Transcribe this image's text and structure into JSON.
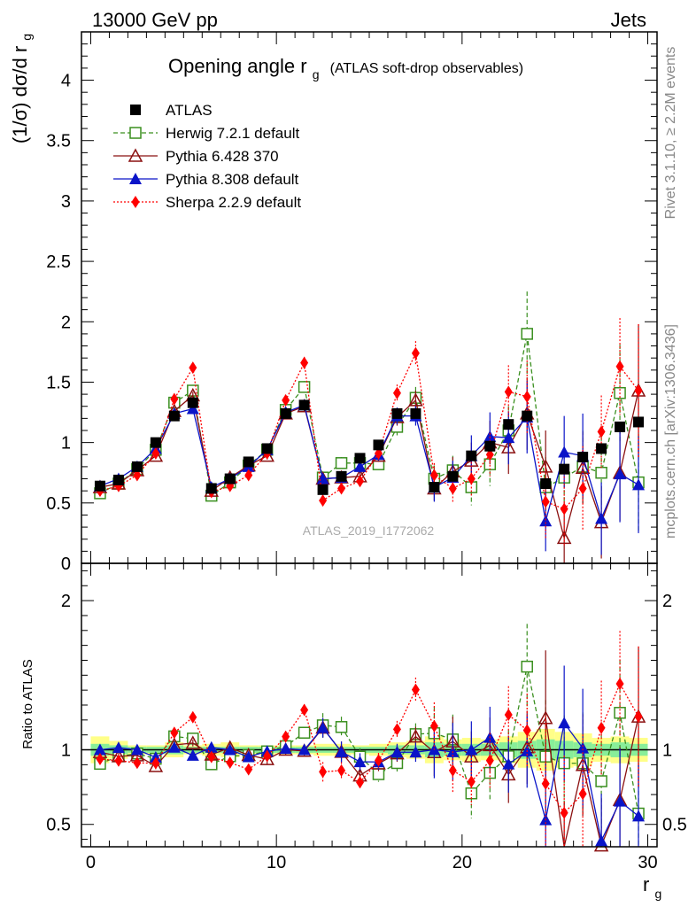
{
  "header": {
    "left": "13000 GeV pp",
    "right": "Jets"
  },
  "side_labels": {
    "rivet": "Rivet 3.1.10, ≥ 2.2M events",
    "mcplots": "mcplots.cern.ch [arXiv:1306.3436]"
  },
  "watermark": "ATLAS_2019_I1772062",
  "chart_data": {
    "type": "line",
    "title_main": "Opening angle r",
    "title_sub": "g",
    "title_note": "(ATLAS soft-drop observables)",
    "ylabel_main": "(1/σ) dσ/d r",
    "ylabel_sub": "g",
    "xlabel_main": "r",
    "xlabel_sub": "g",
    "ratio_ylabel": "Ratio to ATLAS",
    "xlim": [
      -0.5,
      30.5
    ],
    "ylim": [
      0,
      4.4
    ],
    "ratio_ylim": [
      0.35,
      2.25
    ],
    "x_ticks": [
      "0",
      "10",
      "20",
      "30"
    ],
    "y_ticks": [
      "0",
      "0.5",
      "1",
      "1.5",
      "2",
      "2.5",
      "3",
      "3.5",
      "4"
    ],
    "ratio_ticks": [
      "0.5",
      "1",
      "2"
    ],
    "legend_placement": "top-left",
    "x": [
      0.5,
      1.5,
      2.5,
      3.5,
      4.5,
      5.5,
      6.5,
      7.5,
      8.5,
      9.5,
      10.5,
      11.5,
      12.5,
      13.5,
      14.5,
      15.5,
      16.5,
      17.5,
      18.5,
      19.5,
      20.5,
      21.5,
      22.5,
      23.5,
      24.5,
      25.5,
      26.5,
      27.5,
      28.5,
      29.5
    ],
    "data": {
      "name": "ATLAS",
      "color": "#000000",
      "values": [
        0.64,
        0.69,
        0.8,
        1.0,
        1.22,
        1.33,
        0.62,
        0.7,
        0.84,
        0.95,
        1.24,
        1.31,
        0.61,
        0.72,
        0.87,
        0.98,
        1.24,
        1.24,
        0.63,
        0.72,
        0.89,
        0.97,
        1.15,
        1.22,
        0.66,
        0.78,
        0.88,
        0.95,
        1.13,
        1.17
      ],
      "band_syst": [
        0.09,
        0.06,
        0.03,
        0.03,
        0.05,
        0.03,
        0.04,
        0.05,
        0.03,
        0.03,
        0.03,
        0.03,
        0.04,
        0.04,
        0.03,
        0.04,
        0.05,
        0.06,
        0.09,
        0.07,
        0.08,
        0.07,
        0.09,
        0.12,
        0.14,
        0.12,
        0.11,
        0.08,
        0.09,
        0.08
      ],
      "band_stat": [
        0.04,
        0.03,
        0.02,
        0.02,
        0.03,
        0.02,
        0.02,
        0.02,
        0.02,
        0.02,
        0.02,
        0.02,
        0.02,
        0.02,
        0.02,
        0.02,
        0.03,
        0.03,
        0.05,
        0.04,
        0.04,
        0.04,
        0.05,
        0.06,
        0.07,
        0.06,
        0.05,
        0.04,
        0.05,
        0.04
      ]
    },
    "series": [
      {
        "name": "Herwig 7.2.1 default",
        "color": "#3a8f1f",
        "dash": "5,3",
        "marker": "open-square",
        "values": [
          0.58,
          0.66,
          0.78,
          0.94,
          1.33,
          1.43,
          0.56,
          0.67,
          0.81,
          0.94,
          1.27,
          1.46,
          0.71,
          0.83,
          0.83,
          0.82,
          1.13,
          1.37,
          0.7,
          0.77,
          0.63,
          0.82,
          1.1,
          1.9,
          0.63,
          0.71,
          0.8,
          0.75,
          1.41,
          0.67
        ],
        "errors": [
          0.02,
          0.02,
          0.02,
          0.02,
          0.03,
          0.03,
          0.02,
          0.02,
          0.03,
          0.03,
          0.04,
          0.05,
          0.05,
          0.05,
          0.05,
          0.05,
          0.07,
          0.09,
          0.11,
          0.12,
          0.15,
          0.18,
          0.2,
          0.35,
          0.25,
          0.25,
          0.3,
          0.3,
          0.4,
          0.4
        ]
      },
      {
        "name": "Pythia 6.428 370",
        "color": "#8b1010",
        "dash": "",
        "marker": "open-triangle",
        "values": [
          0.63,
          0.66,
          0.77,
          0.89,
          1.26,
          1.39,
          0.6,
          0.71,
          0.81,
          0.89,
          1.24,
          1.3,
          0.7,
          0.71,
          0.72,
          0.89,
          1.21,
          1.35,
          0.62,
          0.76,
          0.85,
          1.0,
          0.96,
          1.24,
          0.8,
          0.21,
          0.79,
          0.34,
          0.75,
          1.43
        ],
        "errors": [
          0.02,
          0.02,
          0.02,
          0.02,
          0.03,
          0.03,
          0.02,
          0.02,
          0.02,
          0.03,
          0.04,
          0.04,
          0.04,
          0.05,
          0.05,
          0.05,
          0.07,
          0.08,
          0.1,
          0.12,
          0.15,
          0.18,
          0.22,
          0.3,
          0.3,
          0.3,
          0.3,
          0.3,
          0.4,
          0.55
        ]
      },
      {
        "name": "Pythia 8.308 default",
        "color": "#0a14c8",
        "dash": "",
        "marker": "filled-triangle",
        "values": [
          0.64,
          0.7,
          0.8,
          0.95,
          1.24,
          1.28,
          0.63,
          0.7,
          0.8,
          0.94,
          1.25,
          1.31,
          0.7,
          0.71,
          0.8,
          0.9,
          1.22,
          1.22,
          0.63,
          0.71,
          0.89,
          1.05,
          1.04,
          1.21,
          0.35,
          0.92,
          0.89,
          0.37,
          0.74,
          0.65
        ],
        "errors": [
          0.02,
          0.02,
          0.02,
          0.02,
          0.03,
          0.03,
          0.02,
          0.02,
          0.02,
          0.03,
          0.04,
          0.04,
          0.04,
          0.05,
          0.05,
          0.05,
          0.07,
          0.08,
          0.12,
          0.14,
          0.17,
          0.2,
          0.22,
          0.3,
          0.25,
          0.3,
          0.35,
          0.3,
          0.4,
          0.4
        ]
      },
      {
        "name": "Sherpa 2.2.9 default",
        "color": "#ff0000",
        "dash": "2,2",
        "marker": "filled-diamond",
        "values": [
          0.6,
          0.64,
          0.73,
          0.91,
          1.36,
          1.62,
          0.59,
          0.64,
          0.73,
          0.91,
          1.35,
          1.66,
          0.52,
          0.62,
          0.68,
          0.91,
          1.41,
          1.74,
          0.73,
          0.62,
          0.7,
          0.9,
          1.42,
          1.38,
          0.51,
          0.45,
          0.62,
          1.09,
          1.63,
          1.43
        ],
        "errors": [
          0.02,
          0.02,
          0.02,
          0.02,
          0.03,
          0.04,
          0.02,
          0.02,
          0.02,
          0.03,
          0.04,
          0.05,
          0.04,
          0.04,
          0.04,
          0.05,
          0.07,
          0.1,
          0.1,
          0.11,
          0.14,
          0.18,
          0.22,
          0.3,
          0.3,
          0.3,
          0.35,
          0.3,
          0.4,
          0.55
        ]
      }
    ]
  }
}
